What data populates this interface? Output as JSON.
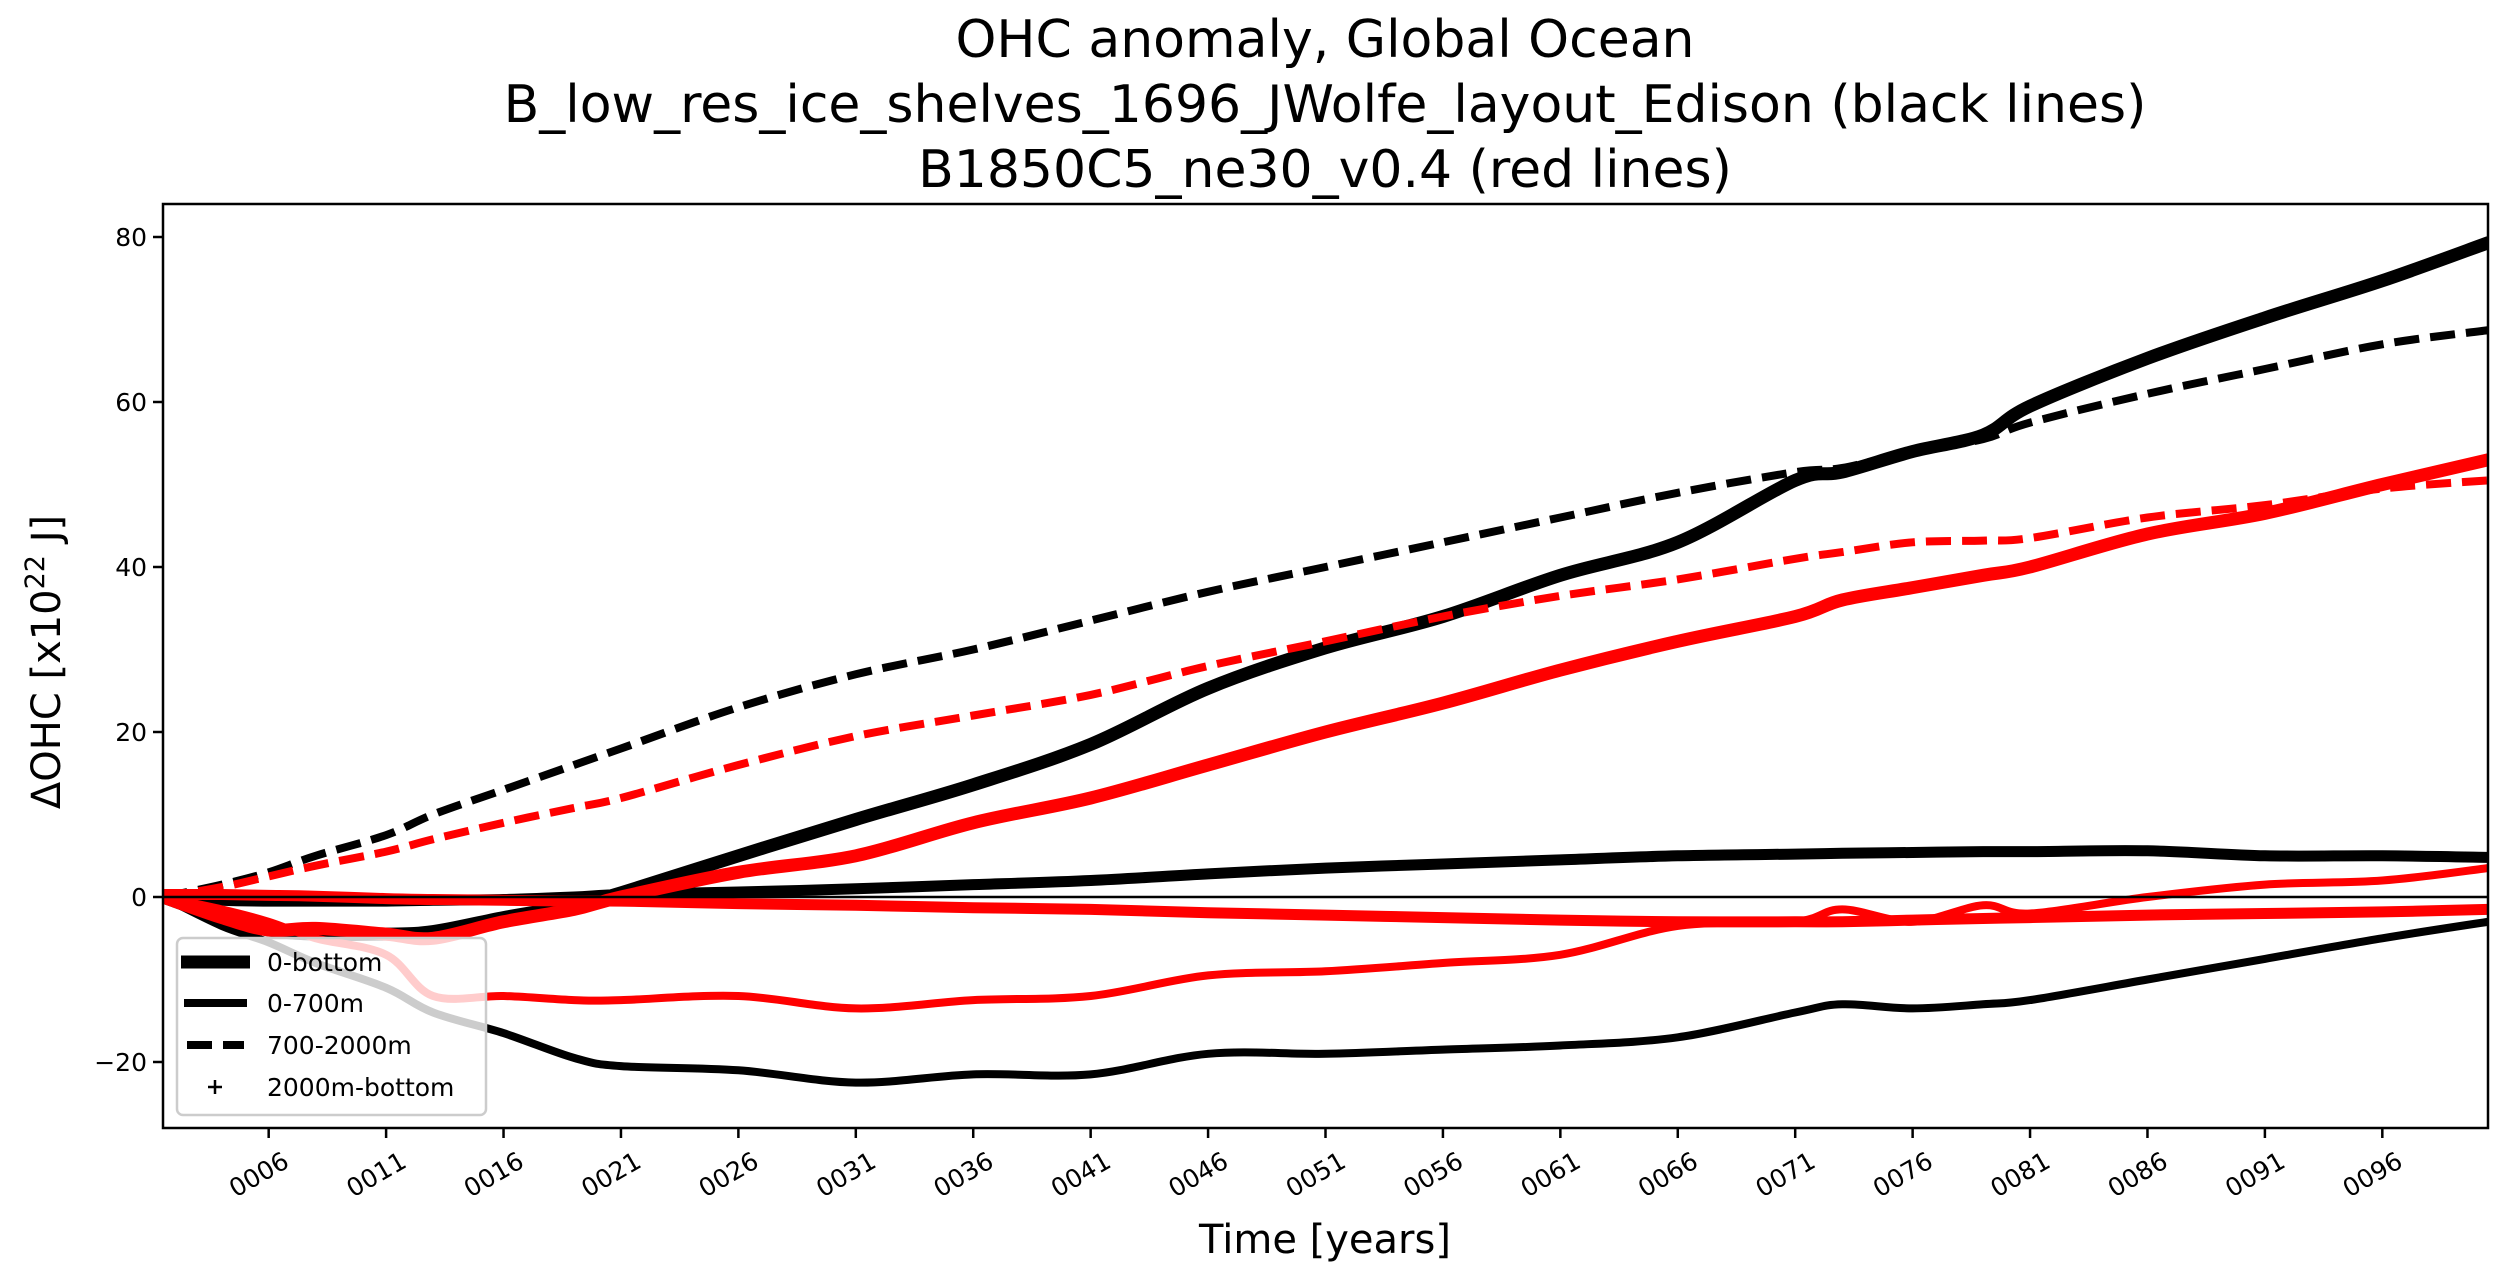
{
  "chart_data": {
    "type": "line",
    "title": [
      "OHC anomaly, Global Ocean",
      "B_low_res_ice_shelves_1696_JWolfe_layout_Edison (black lines)",
      "B1850C5_ne30_v0.4 (red lines)"
    ],
    "xlabel": "Time [years]",
    "ylabel": {
      "main": "ΔOHC  [x10",
      "superscript": "22",
      "unit": " J]"
    },
    "xlim": [
      1.5,
      100.5
    ],
    "ylim": [
      -28,
      84
    ],
    "x_ticks": [
      6,
      11,
      16,
      21,
      26,
      31,
      36,
      41,
      46,
      51,
      56,
      61,
      66,
      71,
      76,
      81,
      86,
      91,
      96
    ],
    "x_tick_labels": [
      "0006",
      "0011",
      "0016",
      "0021",
      "0026",
      "0031",
      "0036",
      "0041",
      "0046",
      "0051",
      "0056",
      "0061",
      "0066",
      "0071",
      "0076",
      "0081",
      "0086",
      "0091",
      "0096"
    ],
    "y_ticks": [
      -20,
      0,
      20,
      40,
      60,
      80
    ],
    "y_tick_labels": [
      "−20",
      "0",
      "20",
      "40",
      "60",
      "80"
    ],
    "zero_line": true,
    "grid": false,
    "legend": {
      "placement": "lower-left",
      "entries": [
        {
          "label": "0-bottom",
          "style": "thick-solid"
        },
        {
          "label": "0-700m",
          "style": "solid"
        },
        {
          "label": "700-2000m",
          "style": "dashed"
        },
        {
          "label": "2000m-bottom",
          "style": "plus-marker"
        }
      ]
    },
    "x": [
      1.5,
      4,
      6,
      8,
      11,
      13,
      16,
      19,
      21,
      26,
      31,
      36,
      41,
      46,
      51,
      56,
      61,
      66,
      71,
      73,
      76,
      79,
      81,
      86,
      91,
      96,
      100.5
    ],
    "series": [
      {
        "name": "0-bottom",
        "run": "B_low_res_ice_shelves_1696_JWolfe_layout_Edison",
        "color": "#000000",
        "style": "thick-solid",
        "values": [
          0,
          -2.5,
          -4,
          -4.5,
          -4.5,
          -4.2,
          -2.5,
          -1,
          0.5,
          5,
          9.4,
          13.6,
          18.5,
          25.3,
          30.2,
          34,
          39,
          43,
          50.5,
          51.5,
          54,
          56,
          59.5,
          65.3,
          70.2,
          74.7,
          79.3
        ]
      },
      {
        "name": "0-700m",
        "run": "B_low_res_ice_shelves_1696_JWolfe_layout_Edison",
        "color": "#000000",
        "style": "solid",
        "values": [
          0,
          -3.5,
          -5.5,
          -8,
          -11,
          -14,
          -16.5,
          -19.5,
          -20.5,
          -21,
          -22.5,
          -21.5,
          -21.5,
          -19,
          -19,
          -18.5,
          -18,
          -17,
          -14,
          -13,
          -13.5,
          -13,
          -12.5,
          -10,
          -7.5,
          -5,
          -3
        ]
      },
      {
        "name": "700-2000m",
        "run": "B_low_res_ice_shelves_1696_JWolfe_layout_Edison",
        "color": "#000000",
        "style": "dashed",
        "values": [
          0,
          1.5,
          3,
          5,
          7.5,
          10,
          13,
          16,
          18,
          23,
          27,
          30,
          33.5,
          37,
          40,
          43,
          46,
          49,
          51.5,
          52,
          54,
          55.5,
          57.5,
          61,
          64,
          67,
          68.7
        ]
      },
      {
        "name": "2000m-bottom",
        "run": "B_low_res_ice_shelves_1696_JWolfe_layout_Edison",
        "color": "#000000",
        "style": "plus-marker",
        "values": [
          0,
          -0.4,
          -0.5,
          -0.5,
          -0.5,
          -0.4,
          -0.3,
          0,
          0.3,
          0.6,
          1,
          1.5,
          2,
          2.8,
          3.5,
          4,
          4.5,
          5,
          5.2,
          5.3,
          5.4,
          5.5,
          5.5,
          5.6,
          5,
          5,
          4.8
        ]
      },
      {
        "name": "0-bottom",
        "run": "B1850C5_ne30_v0.4",
        "color": "#ff0000",
        "style": "thick-solid",
        "values": [
          0,
          -2.5,
          -4,
          -3.8,
          -4.5,
          -5,
          -3,
          -1.5,
          0,
          3,
          5,
          9,
          12,
          16,
          20,
          23.5,
          27.5,
          31,
          34,
          36,
          37.5,
          39,
          40,
          44,
          46.5,
          50,
          53
        ]
      },
      {
        "name": "0-700m",
        "run": "B1850C5_ne30_v0.4",
        "color": "#ff0000",
        "style": "solid",
        "values": [
          0,
          -1.5,
          -3,
          -5,
          -7,
          -12,
          -12,
          -12.5,
          -12.5,
          -12,
          -13.5,
          -12.5,
          -12,
          -9.5,
          -9,
          -8,
          -7,
          -3.5,
          -3,
          -1.5,
          -3,
          -1,
          -2,
          0,
          1.5,
          2,
          3.5
        ]
      },
      {
        "name": "700-2000m",
        "run": "B1850C5_ne30_v0.4",
        "color": "#ff0000",
        "style": "dashed",
        "values": [
          0,
          1.2,
          2.5,
          3.8,
          5.5,
          7,
          9,
          10.8,
          12,
          16,
          19.5,
          22,
          24.5,
          28,
          31,
          34,
          36.5,
          38.5,
          41,
          41.8,
          43,
          43.2,
          43.5,
          46,
          47.5,
          49.5,
          50.5
        ]
      },
      {
        "name": "2000m-bottom",
        "run": "B1850C5_ne30_v0.4",
        "color": "#ff0000",
        "style": "plus-marker",
        "values": [
          0.3,
          0.3,
          0.2,
          0.1,
          -0.2,
          -0.3,
          -0.4,
          -0.5,
          -0.5,
          -0.8,
          -1,
          -1.3,
          -1.5,
          -1.9,
          -2.2,
          -2.5,
          -2.8,
          -3,
          -3,
          -3,
          -2.8,
          -2.6,
          -2.5,
          -2.2,
          -2,
          -1.8,
          -1.5
        ]
      }
    ]
  }
}
